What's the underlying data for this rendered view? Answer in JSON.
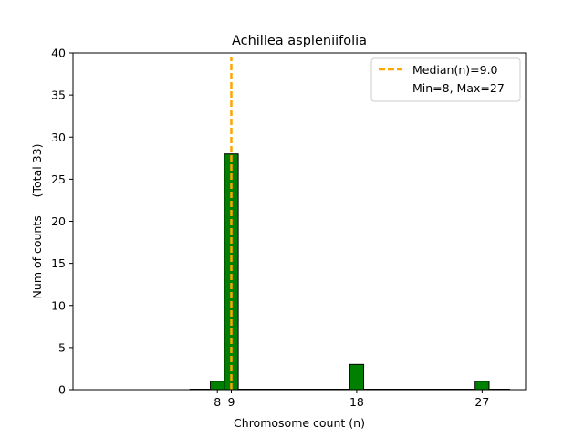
{
  "chart_data": {
    "type": "bar",
    "title": "Achillea aspleniifolia",
    "xlabel": "Chromosome count (n)",
    "ylabel": "Num of counts     (Total 33)",
    "xlim": [
      -2.36,
      30.12
    ],
    "ylim": [
      0,
      40
    ],
    "x_ticks": [
      8,
      9,
      18,
      27
    ],
    "y_ticks": [
      0,
      5,
      10,
      15,
      20,
      25,
      30,
      35,
      40
    ],
    "bin_width": 1,
    "bars": [
      {
        "x": 8,
        "count": 1
      },
      {
        "x": 9,
        "count": 28
      },
      {
        "x": 18,
        "count": 3
      },
      {
        "x": 27,
        "count": 1
      }
    ],
    "baseline_range": [
      6,
      29
    ],
    "median_line": {
      "x": 9.0,
      "label": "Median(n)=9.0",
      "color": "#FFA500"
    },
    "legend": {
      "position": "top-right",
      "entries": [
        "Median(n)=9.0",
        "Min=8, Max=27"
      ]
    },
    "bar_color": "#008000",
    "edge_color": "#000000",
    "grid": false
  }
}
